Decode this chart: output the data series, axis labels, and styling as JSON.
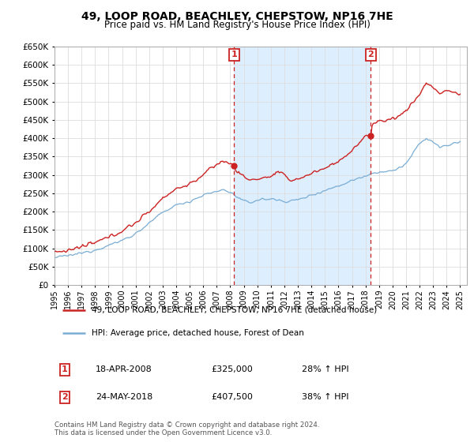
{
  "title": "49, LOOP ROAD, BEACHLEY, CHEPSTOW, NP16 7HE",
  "subtitle": "Price paid vs. HM Land Registry's House Price Index (HPI)",
  "legend_line1": "49, LOOP ROAD, BEACHLEY, CHEPSTOW, NP16 7HE (detached house)",
  "legend_line2": "HPI: Average price, detached house, Forest of Dean",
  "annotation1_date": "18-APR-2008",
  "annotation1_price": "£325,000",
  "annotation1_hpi": "28% ↑ HPI",
  "annotation2_date": "24-MAY-2018",
  "annotation2_price": "£407,500",
  "annotation2_hpi": "38% ↑ HPI",
  "copyright_text": "Contains HM Land Registry data © Crown copyright and database right 2024.\nThis data is licensed under the Open Government Licence v3.0.",
  "sale1_year": 2008.29,
  "sale1_price": 325000,
  "sale2_year": 2018.39,
  "sale2_price": 407500,
  "hpi_color": "#7aadd4",
  "price_color": "#cc2222",
  "annotation_color": "#cc2222",
  "vline_color": "#cc2222",
  "shade_color": "#ddeeff",
  "ylim_min": 0,
  "ylim_max": 650000,
  "xlim_min": 1995.0,
  "xlim_max": 2025.5,
  "background_color": "#ffffff",
  "grid_color": "#dddddd"
}
